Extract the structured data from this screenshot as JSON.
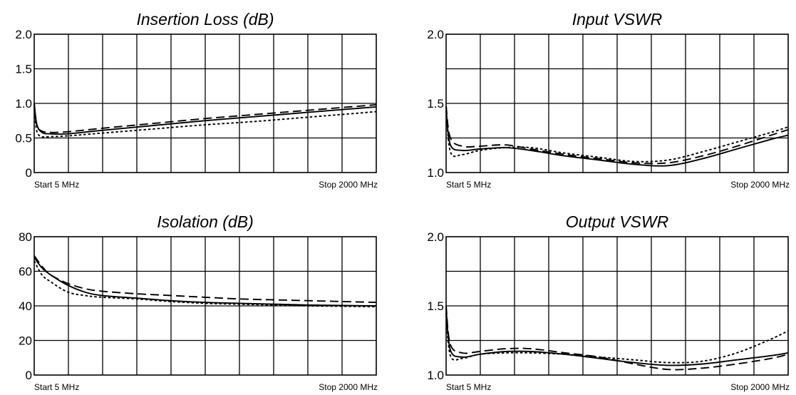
{
  "chart_data": [
    {
      "type": "line",
      "title": "Insertion Loss (dB)",
      "ylim": [
        0,
        2.0
      ],
      "yticks": [
        "0",
        "0.5",
        "1.0",
        "1.5",
        "2.0"
      ],
      "start_label": "Start 5 MHz",
      "stop_label": "Stop 2000 MHz",
      "xlim": [
        5,
        2000
      ],
      "grid": true,
      "series": [
        {
          "style": "solid",
          "x": [
            5,
            20,
            50,
            100,
            200,
            400,
            700,
            1000,
            1300,
            1600,
            1800,
            2000
          ],
          "values": [
            1.0,
            0.7,
            0.58,
            0.56,
            0.56,
            0.61,
            0.68,
            0.75,
            0.81,
            0.87,
            0.91,
            0.95
          ]
        },
        {
          "style": "dashed",
          "x": [
            5,
            20,
            50,
            100,
            200,
            400,
            700,
            1000,
            1300,
            1600,
            1800,
            2000
          ],
          "values": [
            1.0,
            0.68,
            0.6,
            0.58,
            0.59,
            0.64,
            0.71,
            0.78,
            0.84,
            0.9,
            0.94,
            0.98
          ]
        },
        {
          "style": "dotted",
          "x": [
            5,
            20,
            50,
            100,
            200,
            400,
            700,
            1000,
            1300,
            1600,
            1800,
            2000
          ],
          "values": [
            0.95,
            0.6,
            0.52,
            0.52,
            0.53,
            0.57,
            0.63,
            0.69,
            0.74,
            0.8,
            0.84,
            0.88
          ]
        }
      ]
    },
    {
      "type": "line",
      "title": "Input VSWR",
      "ylim": [
        1.0,
        2.0
      ],
      "yticks": [
        "1.0",
        "1.5",
        "2.0"
      ],
      "start_label": "Start 5 MHz",
      "stop_label": "Stop 2000 MHz",
      "xlim": [
        5,
        2000
      ],
      "grid": true,
      "series": [
        {
          "style": "solid",
          "x": [
            5,
            30,
            100,
            200,
            350,
            500,
            700,
            900,
            1100,
            1300,
            1500,
            1700,
            1900,
            2000
          ],
          "values": [
            1.45,
            1.2,
            1.16,
            1.17,
            1.18,
            1.16,
            1.12,
            1.09,
            1.06,
            1.05,
            1.1,
            1.17,
            1.24,
            1.27
          ]
        },
        {
          "style": "dashed",
          "x": [
            5,
            30,
            100,
            200,
            350,
            500,
            700,
            900,
            1100,
            1300,
            1500,
            1700,
            1900,
            2000
          ],
          "values": [
            1.48,
            1.25,
            1.19,
            1.19,
            1.2,
            1.17,
            1.13,
            1.1,
            1.07,
            1.07,
            1.12,
            1.19,
            1.27,
            1.31
          ]
        },
        {
          "style": "dotted",
          "x": [
            5,
            30,
            100,
            200,
            350,
            500,
            700,
            900,
            1100,
            1300,
            1500,
            1700,
            1900,
            2000
          ],
          "values": [
            1.48,
            1.15,
            1.13,
            1.16,
            1.18,
            1.18,
            1.14,
            1.11,
            1.08,
            1.09,
            1.15,
            1.22,
            1.29,
            1.33
          ]
        }
      ]
    },
    {
      "type": "line",
      "title": "Isolation (dB)",
      "ylim": [
        0,
        80
      ],
      "yticks": [
        "0",
        "20",
        "40",
        "60",
        "80"
      ],
      "start_label": "Start 5 MHz",
      "stop_label": "Stop 2000 MHz",
      "xlim": [
        5,
        2000
      ],
      "grid": true,
      "series": [
        {
          "style": "solid",
          "x": [
            5,
            50,
            100,
            200,
            300,
            400,
            600,
            800,
            1000,
            1200,
            1400,
            1600,
            1800,
            2000
          ],
          "values": [
            68,
            62,
            58,
            52,
            48,
            46,
            44.5,
            43,
            42,
            41.5,
            41,
            40.5,
            40.2,
            40
          ]
        },
        {
          "style": "dashed",
          "x": [
            5,
            50,
            100,
            200,
            300,
            400,
            600,
            800,
            1000,
            1200,
            1400,
            1600,
            1800,
            2000
          ],
          "values": [
            69,
            63,
            58,
            53,
            50,
            48.5,
            47,
            46,
            45,
            44,
            43.5,
            43,
            42.5,
            42
          ]
        },
        {
          "style": "dotted",
          "x": [
            5,
            50,
            100,
            200,
            300,
            400,
            600,
            800,
            1000,
            1200,
            1400,
            1600,
            1800,
            2000
          ],
          "values": [
            66,
            58,
            54,
            48,
            46,
            45,
            44,
            42.5,
            41.5,
            41,
            40.5,
            40,
            39.8,
            39.5
          ]
        }
      ]
    },
    {
      "type": "line",
      "title": "Output VSWR",
      "ylim": [
        1.0,
        2.0
      ],
      "yticks": [
        "1.0",
        "1.5",
        "2.0"
      ],
      "start_label": "Start 5 MHz",
      "stop_label": "Stop 2000 MHz",
      "xlim": [
        5,
        2000
      ],
      "grid": true,
      "series": [
        {
          "style": "solid",
          "x": [
            5,
            30,
            100,
            200,
            350,
            500,
            700,
            900,
            1100,
            1300,
            1500,
            1700,
            1900,
            2000
          ],
          "values": [
            1.48,
            1.18,
            1.13,
            1.15,
            1.17,
            1.17,
            1.15,
            1.12,
            1.09,
            1.07,
            1.08,
            1.11,
            1.14,
            1.16
          ]
        },
        {
          "style": "dashed",
          "x": [
            5,
            30,
            100,
            200,
            350,
            500,
            700,
            900,
            1100,
            1300,
            1500,
            1700,
            1900,
            2000
          ],
          "values": [
            1.5,
            1.22,
            1.16,
            1.17,
            1.19,
            1.19,
            1.16,
            1.13,
            1.08,
            1.04,
            1.05,
            1.08,
            1.12,
            1.15
          ]
        },
        {
          "style": "dotted",
          "x": [
            5,
            30,
            100,
            200,
            350,
            500,
            700,
            900,
            1100,
            1300,
            1500,
            1700,
            1900,
            2000
          ],
          "values": [
            1.45,
            1.14,
            1.12,
            1.15,
            1.16,
            1.16,
            1.15,
            1.13,
            1.11,
            1.09,
            1.1,
            1.16,
            1.26,
            1.32
          ]
        }
      ]
    }
  ]
}
